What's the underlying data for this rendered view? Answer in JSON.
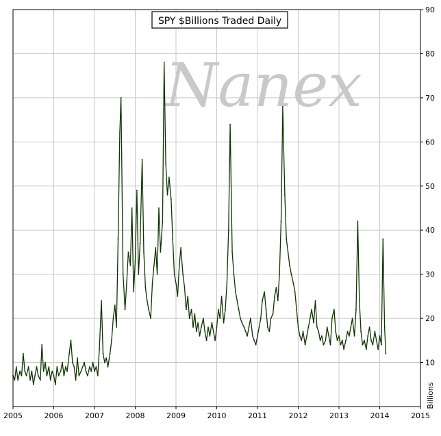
{
  "chart_data": {
    "type": "line",
    "title": "SPY $Billions Traded Daily",
    "watermark": "Nanex",
    "ylabel": "Billions",
    "xlabel": "",
    "xlim": [
      2005,
      2015
    ],
    "ylim": [
      0,
      90
    ],
    "x_ticks": [
      "2005",
      "2006",
      "2007",
      "2008",
      "2009",
      "2010",
      "2011",
      "2012",
      "2013",
      "2014",
      "2015"
    ],
    "y_ticks": [
      "10",
      "20",
      "30",
      "40",
      "50",
      "60",
      "70",
      "80",
      "90"
    ],
    "grid": true,
    "y_axis_side": "right",
    "line_color": "#0d3300",
    "series": [
      {
        "values": [
          [
            2005.0,
            7
          ],
          [
            2005.04,
            6
          ],
          [
            2005.08,
            9
          ],
          [
            2005.12,
            6
          ],
          [
            2005.17,
            8
          ],
          [
            2005.21,
            7
          ],
          [
            2005.25,
            12
          ],
          [
            2005.29,
            8
          ],
          [
            2005.33,
            7
          ],
          [
            2005.38,
            9
          ],
          [
            2005.42,
            6
          ],
          [
            2005.46,
            8
          ],
          [
            2005.5,
            5
          ],
          [
            2005.54,
            7
          ],
          [
            2005.58,
            9
          ],
          [
            2005.62,
            7
          ],
          [
            2005.67,
            6
          ],
          [
            2005.71,
            14
          ],
          [
            2005.75,
            8
          ],
          [
            2005.79,
            10
          ],
          [
            2005.83,
            7
          ],
          [
            2005.88,
            9
          ],
          [
            2005.92,
            6
          ],
          [
            2005.96,
            8
          ],
          [
            2006.0,
            7
          ],
          [
            2006.04,
            5
          ],
          [
            2006.08,
            9
          ],
          [
            2006.12,
            7
          ],
          [
            2006.17,
            8
          ],
          [
            2006.21,
            10
          ],
          [
            2006.25,
            7
          ],
          [
            2006.29,
            9
          ],
          [
            2006.33,
            8
          ],
          [
            2006.38,
            12
          ],
          [
            2006.42,
            15
          ],
          [
            2006.46,
            10
          ],
          [
            2006.5,
            9
          ],
          [
            2006.54,
            6
          ],
          [
            2006.58,
            11
          ],
          [
            2006.62,
            7
          ],
          [
            2006.67,
            8
          ],
          [
            2006.71,
            9
          ],
          [
            2006.75,
            10
          ],
          [
            2006.79,
            8
          ],
          [
            2006.83,
            7
          ],
          [
            2006.88,
            9
          ],
          [
            2006.92,
            8
          ],
          [
            2006.96,
            10
          ],
          [
            2007.0,
            8
          ],
          [
            2007.04,
            9
          ],
          [
            2007.08,
            7
          ],
          [
            2007.12,
            13
          ],
          [
            2007.17,
            24
          ],
          [
            2007.21,
            12
          ],
          [
            2007.25,
            10
          ],
          [
            2007.29,
            11
          ],
          [
            2007.33,
            9
          ],
          [
            2007.38,
            12
          ],
          [
            2007.42,
            15
          ],
          [
            2007.46,
            20
          ],
          [
            2007.5,
            23
          ],
          [
            2007.54,
            18
          ],
          [
            2007.58,
            38
          ],
          [
            2007.62,
            62
          ],
          [
            2007.65,
            70
          ],
          [
            2007.7,
            30
          ],
          [
            2007.75,
            22
          ],
          [
            2007.79,
            28
          ],
          [
            2007.83,
            35
          ],
          [
            2007.88,
            32
          ],
          [
            2007.92,
            45
          ],
          [
            2007.96,
            26
          ],
          [
            2008.0,
            33
          ],
          [
            2008.04,
            49
          ],
          [
            2008.08,
            30
          ],
          [
            2008.12,
            37
          ],
          [
            2008.17,
            56
          ],
          [
            2008.21,
            35
          ],
          [
            2008.25,
            27
          ],
          [
            2008.29,
            24
          ],
          [
            2008.33,
            22
          ],
          [
            2008.38,
            20
          ],
          [
            2008.42,
            28
          ],
          [
            2008.46,
            32
          ],
          [
            2008.5,
            36
          ],
          [
            2008.54,
            30
          ],
          [
            2008.58,
            45
          ],
          [
            2008.62,
            35
          ],
          [
            2008.67,
            42
          ],
          [
            2008.71,
            78
          ],
          [
            2008.75,
            55
          ],
          [
            2008.79,
            48
          ],
          [
            2008.83,
            52
          ],
          [
            2008.88,
            47
          ],
          [
            2008.92,
            38
          ],
          [
            2008.96,
            30
          ],
          [
            2009.0,
            28
          ],
          [
            2009.04,
            25
          ],
          [
            2009.08,
            32
          ],
          [
            2009.12,
            36
          ],
          [
            2009.17,
            30
          ],
          [
            2009.21,
            27
          ],
          [
            2009.25,
            22
          ],
          [
            2009.29,
            25
          ],
          [
            2009.33,
            20
          ],
          [
            2009.38,
            22
          ],
          [
            2009.42,
            18
          ],
          [
            2009.46,
            21
          ],
          [
            2009.5,
            17
          ],
          [
            2009.54,
            19
          ],
          [
            2009.58,
            16
          ],
          [
            2009.62,
            18
          ],
          [
            2009.67,
            20
          ],
          [
            2009.71,
            17
          ],
          [
            2009.75,
            15
          ],
          [
            2009.79,
            18
          ],
          [
            2009.83,
            16
          ],
          [
            2009.88,
            19
          ],
          [
            2009.92,
            17
          ],
          [
            2009.96,
            15
          ],
          [
            2010.0,
            18
          ],
          [
            2010.04,
            22
          ],
          [
            2010.08,
            20
          ],
          [
            2010.12,
            25
          ],
          [
            2010.17,
            19
          ],
          [
            2010.21,
            22
          ],
          [
            2010.25,
            28
          ],
          [
            2010.29,
            40
          ],
          [
            2010.33,
            64
          ],
          [
            2010.38,
            35
          ],
          [
            2010.42,
            30
          ],
          [
            2010.46,
            26
          ],
          [
            2010.5,
            24
          ],
          [
            2010.54,
            22
          ],
          [
            2010.58,
            20
          ],
          [
            2010.62,
            19
          ],
          [
            2010.67,
            18
          ],
          [
            2010.71,
            17
          ],
          [
            2010.75,
            16
          ],
          [
            2010.79,
            18
          ],
          [
            2010.83,
            20
          ],
          [
            2010.88,
            16
          ],
          [
            2010.92,
            15
          ],
          [
            2010.96,
            14
          ],
          [
            2011.0,
            16
          ],
          [
            2011.04,
            18
          ],
          [
            2011.08,
            20
          ],
          [
            2011.12,
            24
          ],
          [
            2011.17,
            26
          ],
          [
            2011.21,
            22
          ],
          [
            2011.25,
            18
          ],
          [
            2011.29,
            17
          ],
          [
            2011.33,
            20
          ],
          [
            2011.38,
            21
          ],
          [
            2011.42,
            25
          ],
          [
            2011.46,
            27
          ],
          [
            2011.5,
            24
          ],
          [
            2011.54,
            30
          ],
          [
            2011.58,
            42
          ],
          [
            2011.62,
            68
          ],
          [
            2011.67,
            48
          ],
          [
            2011.71,
            38
          ],
          [
            2011.75,
            35
          ],
          [
            2011.79,
            32
          ],
          [
            2011.83,
            30
          ],
          [
            2011.88,
            28
          ],
          [
            2011.92,
            26
          ],
          [
            2011.96,
            22
          ],
          [
            2012.0,
            18
          ],
          [
            2012.04,
            16
          ],
          [
            2012.08,
            15
          ],
          [
            2012.12,
            17
          ],
          [
            2012.17,
            14
          ],
          [
            2012.21,
            16
          ],
          [
            2012.25,
            18
          ],
          [
            2012.29,
            20
          ],
          [
            2012.33,
            22
          ],
          [
            2012.38,
            19
          ],
          [
            2012.42,
            24
          ],
          [
            2012.46,
            18
          ],
          [
            2012.5,
            17
          ],
          [
            2012.54,
            15
          ],
          [
            2012.58,
            16
          ],
          [
            2012.62,
            14
          ],
          [
            2012.67,
            15
          ],
          [
            2012.71,
            18
          ],
          [
            2012.75,
            16
          ],
          [
            2012.79,
            14
          ],
          [
            2012.83,
            20
          ],
          [
            2012.88,
            22
          ],
          [
            2012.92,
            17
          ],
          [
            2012.96,
            15
          ],
          [
            2013.0,
            16
          ],
          [
            2013.04,
            14
          ],
          [
            2013.08,
            15
          ],
          [
            2013.12,
            13
          ],
          [
            2013.17,
            15
          ],
          [
            2013.21,
            17
          ],
          [
            2013.25,
            16
          ],
          [
            2013.29,
            18
          ],
          [
            2013.33,
            20
          ],
          [
            2013.38,
            16
          ],
          [
            2013.42,
            22
          ],
          [
            2013.46,
            42
          ],
          [
            2013.5,
            24
          ],
          [
            2013.54,
            17
          ],
          [
            2013.58,
            14
          ],
          [
            2013.62,
            15
          ],
          [
            2013.67,
            13
          ],
          [
            2013.71,
            16
          ],
          [
            2013.75,
            18
          ],
          [
            2013.79,
            15
          ],
          [
            2013.83,
            14
          ],
          [
            2013.88,
            17
          ],
          [
            2013.92,
            15
          ],
          [
            2013.96,
            13
          ],
          [
            2014.0,
            16
          ],
          [
            2014.04,
            14
          ],
          [
            2014.08,
            38
          ],
          [
            2014.12,
            18
          ],
          [
            2014.15,
            12
          ]
        ]
      }
    ]
  }
}
